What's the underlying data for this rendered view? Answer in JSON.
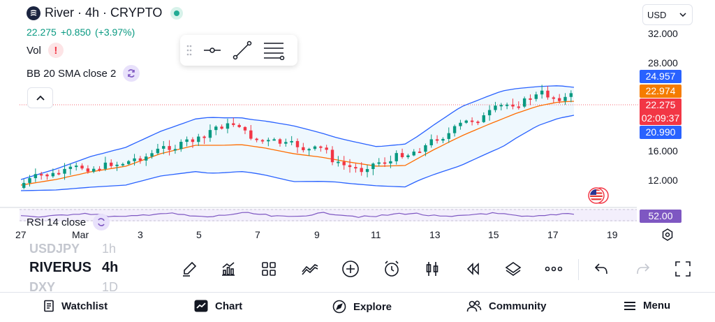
{
  "symbol": {
    "name": "River",
    "timeframe": "4h",
    "market": "CRYPTO",
    "title": "River · 4h · CRYPTO",
    "price": "22.275",
    "change": "+0.850",
    "change_pct": "(+3.97%)"
  },
  "indicators": {
    "vol_label": "Vol",
    "vol_warning": "!",
    "bb_label": "BB 20 SMA close 2",
    "rsi_label": "RSI 14 close"
  },
  "currency": {
    "selected": "USD"
  },
  "price_axis": {
    "ticks": [
      "32.000",
      "28.000",
      "16.000",
      "12.000"
    ]
  },
  "price_tags": {
    "bb_upper": "24.957",
    "bb_basis": "22.974",
    "last_price": "22.275",
    "countdown": "02:09:37",
    "bb_lower": "20.990",
    "rsi_value": "52.00"
  },
  "date_axis": [
    "27",
    "Mar",
    "3",
    "5",
    "7",
    "9",
    "11",
    "13",
    "15",
    "17",
    "19"
  ],
  "watchlist": {
    "ghost_above": {
      "symbol": "USDJPY",
      "tf": "1h"
    },
    "current": {
      "symbol": "RIVERUS",
      "tf": "4h"
    },
    "ghost_below": {
      "symbol": "DXY",
      "tf": "1D"
    }
  },
  "toolbar_icons": [
    "brush-icon",
    "indicators-icon",
    "layouts-icon",
    "compare-icon",
    "add-icon",
    "alert-clock-icon",
    "candles-icon",
    "replay-icon",
    "layers-icon",
    "more-icon",
    "undo-icon",
    "redo-icon",
    "fullscreen-icon"
  ],
  "nav": {
    "watchlist": "Watchlist",
    "chart": "Chart",
    "explore": "Explore",
    "community": "Community",
    "menu": "Menu"
  },
  "colors": {
    "up": "#089981",
    "down": "#f23645",
    "bb_band": "#2962ff",
    "bb_basis": "#ff6d00",
    "rsi": "#7e57c2",
    "countdown_tag": "#f23645",
    "upper_tag": "#2962ff",
    "basis_tag": "#f57c00"
  },
  "chart_data": {
    "type": "candlestick",
    "timeframe": "4h",
    "y_ticks": [
      12,
      16,
      28,
      32
    ],
    "x_tick_labels": [
      "27",
      "Mar",
      "3",
      "5",
      "7",
      "9",
      "11",
      "13",
      "15",
      "17",
      "19"
    ],
    "last": 22.275,
    "bb": {
      "upper": 24.957,
      "basis": 22.974,
      "lower": 20.99
    },
    "rsi": 52.0
  }
}
